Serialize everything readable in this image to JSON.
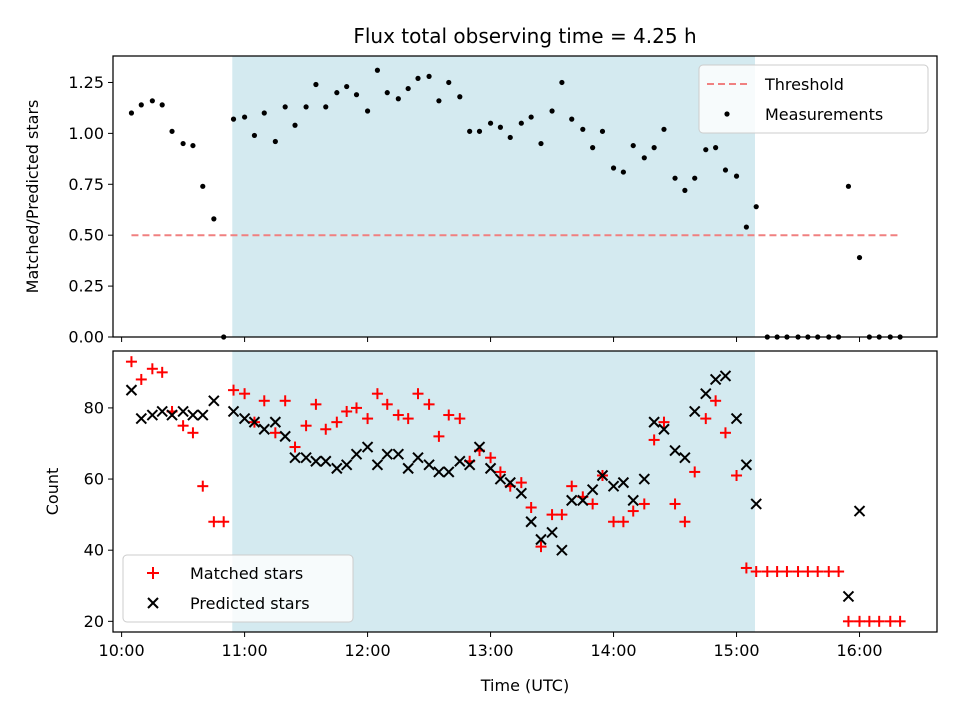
{
  "chart_data": [
    {
      "type": "scatter",
      "title": "Flux total observing time = 4.25 h",
      "xlabel": "",
      "ylabel": "Matched/Predicted stars",
      "xlim": [
        9.93,
        16.63
      ],
      "ylim": [
        0,
        1.38
      ],
      "yticks": [
        0.0,
        0.25,
        0.5,
        0.75,
        1.0,
        1.25
      ],
      "ytick_labels": [
        "0.00",
        "0.25",
        "0.50",
        "0.75",
        "1.00",
        "1.25"
      ],
      "grid": false,
      "legend_position": "upper-right",
      "shaded_interval": [
        10.9,
        15.15
      ],
      "shade_color": "#d4eaf0",
      "threshold": {
        "name": "Threshold",
        "y": 0.5,
        "x_range": [
          10.08,
          16.33
        ],
        "color": "#f08080",
        "style": "dashed"
      },
      "series": [
        {
          "name": "Measurements",
          "color": "#000000",
          "marker": "dot",
          "points": [
            [
              10.08,
              1.1
            ],
            [
              10.16,
              1.14
            ],
            [
              10.25,
              1.16
            ],
            [
              10.33,
              1.14
            ],
            [
              10.41,
              1.01
            ],
            [
              10.5,
              0.95
            ],
            [
              10.58,
              0.94
            ],
            [
              10.66,
              0.74
            ],
            [
              10.75,
              0.58
            ],
            [
              10.83,
              0.0
            ],
            [
              10.91,
              1.07
            ],
            [
              11.0,
              1.08
            ],
            [
              11.08,
              0.99
            ],
            [
              11.16,
              1.1
            ],
            [
              11.25,
              0.96
            ],
            [
              11.33,
              1.13
            ],
            [
              11.41,
              1.04
            ],
            [
              11.5,
              1.13
            ],
            [
              11.58,
              1.24
            ],
            [
              11.66,
              1.13
            ],
            [
              11.75,
              1.2
            ],
            [
              11.83,
              1.23
            ],
            [
              11.91,
              1.19
            ],
            [
              12.0,
              1.11
            ],
            [
              12.08,
              1.31
            ],
            [
              12.16,
              1.2
            ],
            [
              12.25,
              1.17
            ],
            [
              12.33,
              1.22
            ],
            [
              12.41,
              1.27
            ],
            [
              12.5,
              1.28
            ],
            [
              12.58,
              1.16
            ],
            [
              12.66,
              1.25
            ],
            [
              12.75,
              1.18
            ],
            [
              12.83,
              1.01
            ],
            [
              12.91,
              1.01
            ],
            [
              13.0,
              1.05
            ],
            [
              13.08,
              1.03
            ],
            [
              13.16,
              0.98
            ],
            [
              13.25,
              1.05
            ],
            [
              13.33,
              1.08
            ],
            [
              13.41,
              0.95
            ],
            [
              13.5,
              1.11
            ],
            [
              13.58,
              1.25
            ],
            [
              13.66,
              1.07
            ],
            [
              13.75,
              1.02
            ],
            [
              13.83,
              0.93
            ],
            [
              13.91,
              1.01
            ],
            [
              14.0,
              0.83
            ],
            [
              14.08,
              0.81
            ],
            [
              14.16,
              0.94
            ],
            [
              14.25,
              0.88
            ],
            [
              14.33,
              0.93
            ],
            [
              14.41,
              1.02
            ],
            [
              14.5,
              0.78
            ],
            [
              14.58,
              0.72
            ],
            [
              14.66,
              0.78
            ],
            [
              14.75,
              0.92
            ],
            [
              14.83,
              0.93
            ],
            [
              14.91,
              0.82
            ],
            [
              15.0,
              0.79
            ],
            [
              15.08,
              0.54
            ],
            [
              15.16,
              0.64
            ],
            [
              15.25,
              0.0
            ],
            [
              15.33,
              0.0
            ],
            [
              15.41,
              0.0
            ],
            [
              15.5,
              0.0
            ],
            [
              15.58,
              0.0
            ],
            [
              15.66,
              0.0
            ],
            [
              15.75,
              0.0
            ],
            [
              15.83,
              0.0
            ],
            [
              15.91,
              0.74
            ],
            [
              16.0,
              0.39
            ],
            [
              16.08,
              0.0
            ],
            [
              16.16,
              0.0
            ],
            [
              16.25,
              0.0
            ],
            [
              16.33,
              0.0
            ]
          ]
        }
      ]
    },
    {
      "type": "scatter",
      "title": "",
      "xlabel": "Time (UTC)",
      "ylabel": "Count",
      "xlim": [
        9.93,
        16.63
      ],
      "ylim": [
        17,
        96
      ],
      "yticks": [
        20,
        40,
        60,
        80
      ],
      "ytick_labels": [
        "20",
        "40",
        "60",
        "80"
      ],
      "xticks": [
        10,
        11,
        12,
        13,
        14,
        15,
        16
      ],
      "xtick_labels": [
        "10:00",
        "11:00",
        "12:00",
        "13:00",
        "14:00",
        "15:00",
        "16:00"
      ],
      "grid": false,
      "legend_position": "lower-left",
      "shaded_interval": [
        10.9,
        15.15
      ],
      "shade_color": "#d4eaf0",
      "series": [
        {
          "name": "Matched stars",
          "color": "#ff0000",
          "marker": "plus",
          "points": [
            [
              10.08,
              93
            ],
            [
              10.16,
              88
            ],
            [
              10.25,
              91
            ],
            [
              10.33,
              90
            ],
            [
              10.41,
              79
            ],
            [
              10.5,
              75
            ],
            [
              10.58,
              73
            ],
            [
              10.66,
              58
            ],
            [
              10.75,
              48
            ],
            [
              10.83,
              48
            ],
            [
              10.91,
              85
            ],
            [
              11.0,
              84
            ],
            [
              11.08,
              76
            ],
            [
              11.16,
              82
            ],
            [
              11.25,
              73
            ],
            [
              11.33,
              82
            ],
            [
              11.41,
              69
            ],
            [
              11.5,
              75
            ],
            [
              11.58,
              81
            ],
            [
              11.66,
              74
            ],
            [
              11.75,
              76
            ],
            [
              11.83,
              79
            ],
            [
              11.91,
              80
            ],
            [
              12.0,
              77
            ],
            [
              12.08,
              84
            ],
            [
              12.16,
              81
            ],
            [
              12.25,
              78
            ],
            [
              12.33,
              77
            ],
            [
              12.41,
              84
            ],
            [
              12.5,
              81
            ],
            [
              12.58,
              72
            ],
            [
              12.66,
              78
            ],
            [
              12.75,
              77
            ],
            [
              12.83,
              65
            ],
            [
              12.91,
              68
            ],
            [
              13.0,
              66
            ],
            [
              13.08,
              62
            ],
            [
              13.16,
              58
            ],
            [
              13.25,
              59
            ],
            [
              13.33,
              52
            ],
            [
              13.41,
              41
            ],
            [
              13.5,
              50
            ],
            [
              13.58,
              50
            ],
            [
              13.66,
              58
            ],
            [
              13.75,
              55
            ],
            [
              13.83,
              53
            ],
            [
              13.91,
              61
            ],
            [
              14.0,
              48
            ],
            [
              14.08,
              48
            ],
            [
              14.16,
              51
            ],
            [
              14.25,
              53
            ],
            [
              14.33,
              71
            ],
            [
              14.41,
              76
            ],
            [
              14.5,
              53
            ],
            [
              14.58,
              48
            ],
            [
              14.66,
              62
            ],
            [
              14.75,
              77
            ],
            [
              14.83,
              82
            ],
            [
              14.91,
              73
            ],
            [
              15.0,
              61
            ],
            [
              15.08,
              35
            ],
            [
              15.16,
              34
            ],
            [
              15.25,
              34
            ],
            [
              15.33,
              34
            ],
            [
              15.41,
              34
            ],
            [
              15.5,
              34
            ],
            [
              15.58,
              34
            ],
            [
              15.66,
              34
            ],
            [
              15.75,
              34
            ],
            [
              15.83,
              34
            ],
            [
              15.91,
              20
            ],
            [
              16.0,
              20
            ],
            [
              16.08,
              20
            ],
            [
              16.16,
              20
            ],
            [
              16.25,
              20
            ],
            [
              16.33,
              20
            ]
          ]
        },
        {
          "name": "Predicted stars",
          "color": "#000000",
          "marker": "x",
          "points": [
            [
              10.08,
              85
            ],
            [
              10.16,
              77
            ],
            [
              10.25,
              78
            ],
            [
              10.33,
              79
            ],
            [
              10.41,
              78
            ],
            [
              10.5,
              79
            ],
            [
              10.58,
              78
            ],
            [
              10.66,
              78
            ],
            [
              10.75,
              82
            ],
            [
              10.91,
              79
            ],
            [
              11.0,
              77
            ],
            [
              11.08,
              76
            ],
            [
              11.16,
              74
            ],
            [
              11.25,
              76
            ],
            [
              11.33,
              72
            ],
            [
              11.41,
              66
            ],
            [
              11.5,
              66
            ],
            [
              11.58,
              65
            ],
            [
              11.66,
              65
            ],
            [
              11.75,
              63
            ],
            [
              11.83,
              64
            ],
            [
              11.91,
              67
            ],
            [
              12.0,
              69
            ],
            [
              12.08,
              64
            ],
            [
              12.16,
              67
            ],
            [
              12.25,
              67
            ],
            [
              12.33,
              63
            ],
            [
              12.41,
              66
            ],
            [
              12.5,
              64
            ],
            [
              12.58,
              62
            ],
            [
              12.66,
              62
            ],
            [
              12.75,
              65
            ],
            [
              12.83,
              64
            ],
            [
              12.91,
              69
            ],
            [
              13.0,
              63
            ],
            [
              13.08,
              60
            ],
            [
              13.16,
              59
            ],
            [
              13.25,
              56
            ],
            [
              13.33,
              48
            ],
            [
              13.41,
              43
            ],
            [
              13.5,
              45
            ],
            [
              13.58,
              40
            ],
            [
              13.66,
              54
            ],
            [
              13.75,
              54
            ],
            [
              13.83,
              57
            ],
            [
              13.91,
              61
            ],
            [
              14.0,
              58
            ],
            [
              14.08,
              59
            ],
            [
              14.16,
              54
            ],
            [
              14.25,
              60
            ],
            [
              14.33,
              76
            ],
            [
              14.41,
              74
            ],
            [
              14.5,
              68
            ],
            [
              14.58,
              66
            ],
            [
              14.66,
              79
            ],
            [
              14.75,
              84
            ],
            [
              14.83,
              88
            ],
            [
              14.91,
              89
            ],
            [
              15.0,
              77
            ],
            [
              15.08,
              64
            ],
            [
              15.16,
              53
            ],
            [
              15.91,
              27
            ],
            [
              16.0,
              51
            ]
          ]
        }
      ]
    }
  ]
}
